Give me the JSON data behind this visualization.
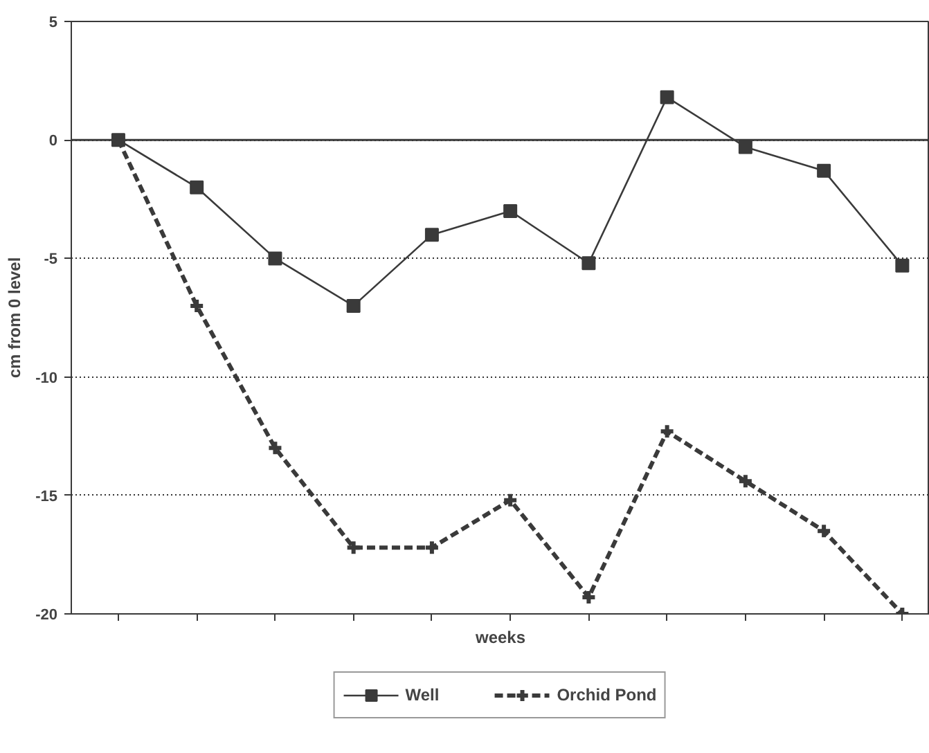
{
  "chart_data": {
    "type": "line",
    "xlabel": "weeks",
    "ylabel": "cm from 0 level",
    "categories": [
      null,
      null,
      null,
      null,
      null,
      null,
      null,
      null,
      null,
      null,
      null
    ],
    "series": [
      {
        "name": "Well",
        "color": "#3a3a3a",
        "marker": "square",
        "line_style": "solid",
        "values": [
          0,
          -2,
          -5,
          -7,
          -4,
          -3,
          -5.2,
          1.8,
          -0.3,
          -1.3,
          -5.3
        ]
      },
      {
        "name": "Orchid Pond",
        "color": "#3a3a3a",
        "marker": "cross",
        "line_style": "dashed",
        "values": [
          0,
          -7,
          -13,
          -17.2,
          -17.2,
          -15.2,
          -19.3,
          -12.3,
          -14.4,
          -16.5,
          -20
        ]
      }
    ],
    "ylim": [
      -20,
      5
    ],
    "yticks": [
      5,
      0,
      -5,
      -10,
      -15,
      -20
    ],
    "grid": "y",
    "legend": "bottom",
    "tick_labels": "y",
    "ref_lines": [
      {
        "axis": "y",
        "value": 0,
        "color": "#3a3a3a",
        "line_style": "solid"
      }
    ]
  }
}
